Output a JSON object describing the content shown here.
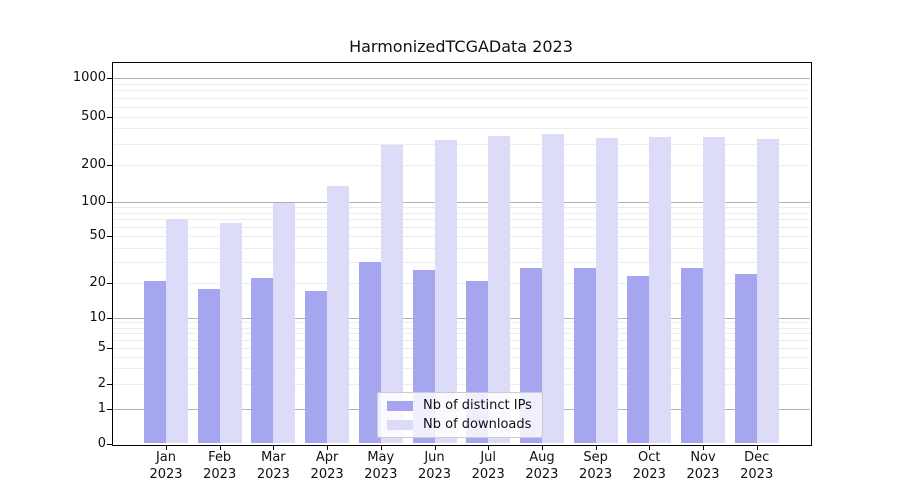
{
  "title": "HarmonizedTCGAData 2023",
  "chart_data": {
    "type": "bar",
    "title": "HarmonizedTCGAData 2023",
    "categories": [
      "Jan",
      "Feb",
      "Mar",
      "Apr",
      "May",
      "Jun",
      "Jul",
      "Aug",
      "Sep",
      "Oct",
      "Nov",
      "Dec"
    ],
    "category_year": "2023",
    "series": [
      {
        "name": "Nb of distinct IPs",
        "color": "#a6a6f0",
        "values": [
          21,
          18,
          22,
          17,
          30,
          26,
          21,
          27,
          27,
          23,
          27,
          24
        ]
      },
      {
        "name": "Nb of downloads",
        "color": "#dcdcf8",
        "values": [
          70,
          65,
          97,
          135,
          290,
          320,
          350,
          360,
          335,
          340,
          340,
          330
        ]
      }
    ],
    "xlabel": "",
    "ylabel": "",
    "yscale": "asinh-like quasi-log",
    "ytick_labels": [
      0,
      1,
      2,
      5,
      10,
      20,
      50,
      100,
      200,
      500,
      1000
    ],
    "ylim": [
      0,
      1300
    ],
    "grid": "both (major darker at 1,10,100,1000; faint minors)",
    "legend_position": "lower center inside plot",
    "bar_layout": "grouped pairs, dark series left, light series right"
  },
  "colors": {
    "background": "#ffffff",
    "bar_dark": "#a6a6f0",
    "bar_light": "#dcdcf8",
    "grid_major": "#b0b0b0",
    "grid_minor": "#ededed",
    "spine": "#000000",
    "text": "#111111"
  }
}
